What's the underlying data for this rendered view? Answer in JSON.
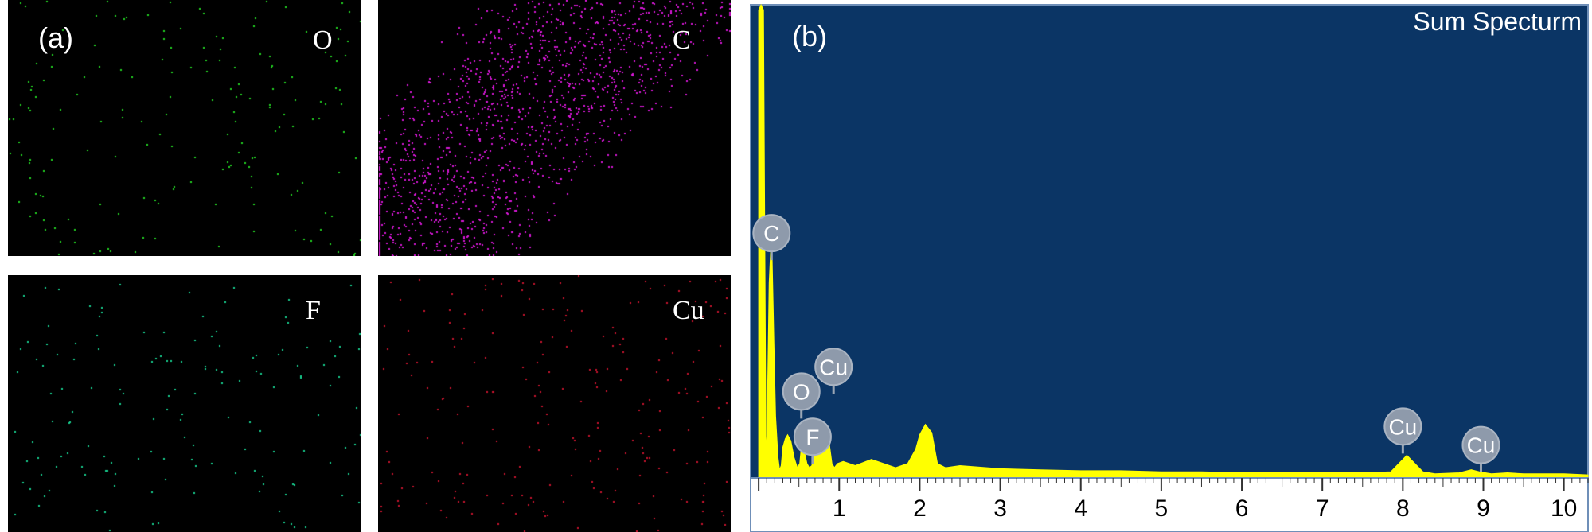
{
  "panel_a": {
    "label": "(a)",
    "maps": [
      {
        "element": "O",
        "color": "#21d321",
        "density": 180
      },
      {
        "element": "C",
        "color": "#d417d4",
        "density": 1500
      },
      {
        "element": "F",
        "color": "#17cf8f",
        "density": 150
      },
      {
        "element": "Cu",
        "color": "#c6122c",
        "density": 240
      }
    ]
  },
  "panel_b": {
    "label": "(b)"
  },
  "chart_data": {
    "type": "line",
    "title": "Sum Specturm",
    "xlabel": "",
    "ylabel": "",
    "xlim": [
      -0.1,
      10.3
    ],
    "ylim": [
      0,
      460
    ],
    "x_ticks": [
      1,
      2,
      3,
      4,
      5,
      6,
      7,
      8,
      9,
      10
    ],
    "grid": false,
    "background_color": "#0b3565",
    "line_color": "#ffff00",
    "series": [
      {
        "x": [
          0.0,
          0.03,
          0.06,
          0.09,
          0.1,
          0.13,
          0.16,
          0.19,
          0.21,
          0.24,
          0.26,
          0.28,
          0.3,
          0.33,
          0.36,
          0.4,
          0.44,
          0.48,
          0.51,
          0.53,
          0.56,
          0.6,
          0.63,
          0.66,
          0.7,
          0.75,
          0.8,
          0.85,
          0.88,
          0.91,
          0.94,
          0.98,
          1.05,
          1.2,
          1.4,
          1.55,
          1.7,
          1.85,
          1.95,
          2.0,
          2.07,
          2.15,
          2.22,
          2.32,
          2.5,
          3.0,
          3.5,
          4.0,
          4.5,
          5.0,
          5.5,
          6.0,
          6.5,
          7.0,
          7.5,
          7.85,
          7.95,
          8.05,
          8.15,
          8.25,
          8.4,
          8.7,
          8.85,
          8.95,
          9.1,
          9.3,
          9.5,
          10.0,
          10.3
        ],
        "y": [
          455,
          460,
          455,
          40,
          25,
          190,
          240,
          130,
          60,
          20,
          8,
          12,
          30,
          38,
          42,
          36,
          20,
          10,
          14,
          30,
          28,
          14,
          10,
          12,
          28,
          40,
          52,
          48,
          32,
          14,
          10,
          14,
          16,
          12,
          18,
          14,
          10,
          14,
          28,
          42,
          52,
          44,
          14,
          10,
          12,
          9,
          8,
          7,
          7,
          6,
          6,
          5,
          5,
          5,
          5,
          6,
          14,
          22,
          14,
          6,
          4,
          5,
          8,
          6,
          4,
          5,
          4,
          4,
          3
        ]
      }
    ],
    "peak_labels": [
      {
        "text": "C",
        "x": 0.16,
        "y": 238
      },
      {
        "text": "Cu",
        "x": 0.93,
        "y": 108
      },
      {
        "text": "O",
        "x": 0.53,
        "y": 84
      },
      {
        "text": "F",
        "x": 0.67,
        "y": 40
      },
      {
        "text": "Cu",
        "x": 8.0,
        "y": 50
      },
      {
        "text": "Cu",
        "x": 8.97,
        "y": 32
      }
    ]
  }
}
